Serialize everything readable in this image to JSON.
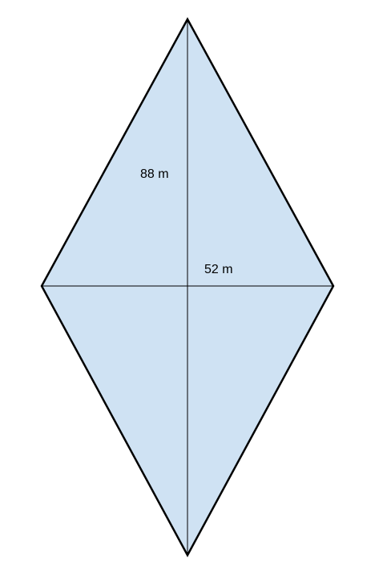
{
  "shape": {
    "fill_color": "#cfe2f3",
    "stroke_color": "#000000"
  },
  "labels": {
    "vertical_diagonal": "88 m",
    "horizontal_diagonal": "52 m"
  }
}
